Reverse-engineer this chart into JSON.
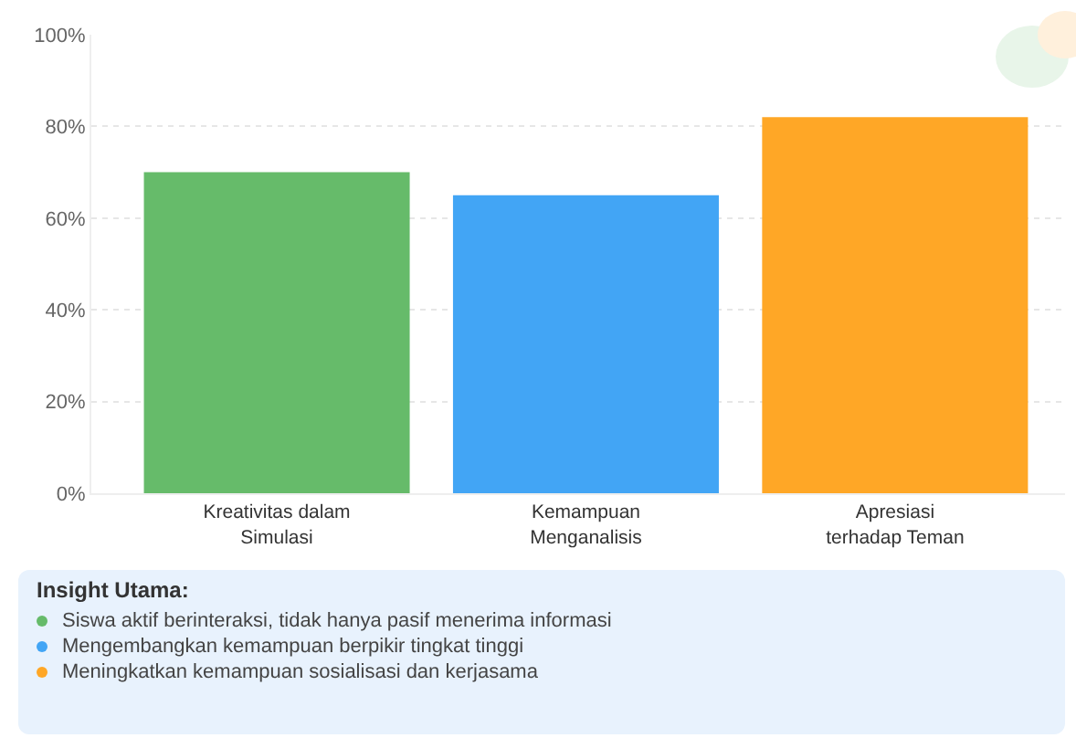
{
  "chart_data": {
    "type": "bar",
    "categories": [
      "Kreativitas dalam\nSimulasi",
      "Kemampuan\nMenganalisis",
      "Apresiasi\nterhadap Teman"
    ],
    "values": [
      70,
      65,
      82
    ],
    "colors": [
      "#66bb6a",
      "#42a5f5",
      "#ffa726"
    ],
    "ylim": [
      0,
      100
    ],
    "yticks": [
      {
        "value": 0,
        "label": "0%"
      },
      {
        "value": 20,
        "label": "20%"
      },
      {
        "value": 40,
        "label": "40%"
      },
      {
        "value": 60,
        "label": "60%"
      },
      {
        "value": 80,
        "label": "80%"
      },
      {
        "value": 100,
        "label": "100%"
      }
    ],
    "grid": "y",
    "legend": false,
    "annotations": [
      "Insight Utama:",
      "Siswa aktif berinteraksi, tidak hanya pasif menerima informasi",
      "Mengembangkan kemampuan berpikir tingkat tinggi",
      "Meningkatkan kemampuan sosialisasi dan kerjasama"
    ]
  }
}
